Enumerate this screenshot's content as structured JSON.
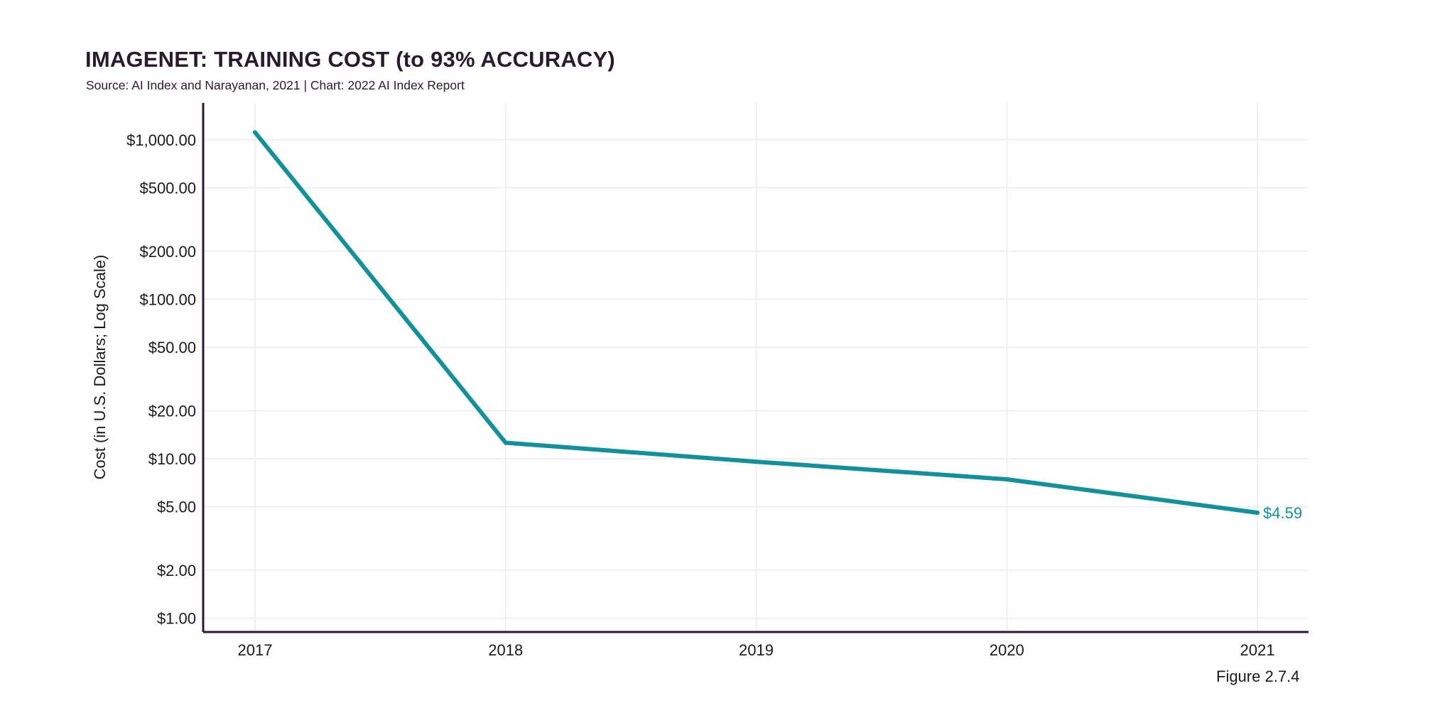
{
  "header": {
    "title": "IMAGENET: TRAINING COST (to 93% ACCURACY)",
    "subtitle": "Source: AI Index and Narayanan, 2021 | Chart: 2022 AI Index Report"
  },
  "footer": {
    "figure_label": "Figure 2.7.4"
  },
  "colors": {
    "series": "#12919a",
    "axis": "#2a1a2e",
    "grid": "#ececec"
  },
  "chart_data": {
    "type": "line",
    "title": "IMAGENET: TRAINING COST (to 93% ACCURACY)",
    "xlabel": "",
    "ylabel": "Cost (in U.S. Dollars; Log Scale)",
    "yscale": "log",
    "ylim": [
      0.82,
      1700
    ],
    "grid": true,
    "categories": [
      "2017",
      "2018",
      "2019",
      "2020",
      "2021"
    ],
    "y_ticks": [
      {
        "value": 1000,
        "label": "$1,000.00"
      },
      {
        "value": 500,
        "label": "$500.00"
      },
      {
        "value": 200,
        "label": "$200.00"
      },
      {
        "value": 100,
        "label": "$100.00"
      },
      {
        "value": 50,
        "label": "$50.00"
      },
      {
        "value": 20,
        "label": "$20.00"
      },
      {
        "value": 10,
        "label": "$10.00"
      },
      {
        "value": 5,
        "label": "$5.00"
      },
      {
        "value": 2,
        "label": "$2.00"
      },
      {
        "value": 1,
        "label": "$1.00"
      }
    ],
    "series": [
      {
        "values": [
          1112.64,
          12.6,
          9.58,
          7.43,
          4.59
        ],
        "end_label": "$4.59"
      }
    ]
  }
}
